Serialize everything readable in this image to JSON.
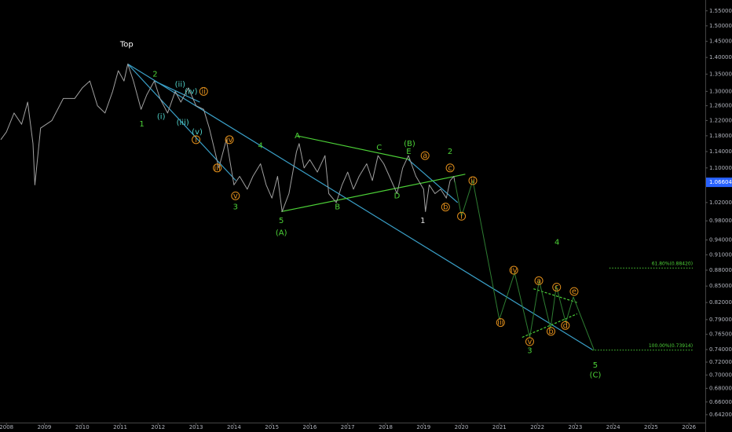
{
  "chart_data": {
    "type": "line",
    "log_scale": true,
    "xlim": [
      2007.83,
      2026.43
    ],
    "ylim": [
      0.631,
      1.587
    ],
    "xticks": [
      2008,
      2009,
      2010,
      2011,
      2012,
      2013,
      2014,
      2015,
      2016,
      2017,
      2018,
      2019,
      2020,
      2021,
      2022,
      2023,
      2024,
      2025,
      2026
    ],
    "yticks": [
      {
        "value": 1.55,
        "label": "1.55000"
      },
      {
        "value": 1.5,
        "label": "1.50000"
      },
      {
        "value": 1.45,
        "label": "1.45000"
      },
      {
        "value": 1.4,
        "label": "1.40000"
      },
      {
        "value": 1.35,
        "label": "1.35000"
      },
      {
        "value": 1.3,
        "label": "1.30000"
      },
      {
        "value": 1.26,
        "label": "1.26000"
      },
      {
        "value": 1.22,
        "label": "1.22000"
      },
      {
        "value": 1.18,
        "label": "1.18000"
      },
      {
        "value": 1.14,
        "label": "1.14000"
      },
      {
        "value": 1.1,
        "label": "1.10000"
      },
      {
        "value": 1.02,
        "label": "1.02000"
      },
      {
        "value": 0.98,
        "label": "0.98000"
      },
      {
        "value": 0.94,
        "label": "0.94000"
      },
      {
        "value": 0.91,
        "label": "0.91000"
      },
      {
        "value": 0.88,
        "label": "0.88000"
      },
      {
        "value": 0.85,
        "label": "0.85000"
      },
      {
        "value": 0.82,
        "label": "0.82000"
      },
      {
        "value": 0.79,
        "label": "0.79000"
      },
      {
        "value": 0.765,
        "label": "0.76500"
      },
      {
        "value": 0.74,
        "label": "0.74000"
      },
      {
        "value": 0.72,
        "label": "0.72000"
      },
      {
        "value": 0.7,
        "label": "0.70000"
      },
      {
        "value": 0.68,
        "label": "0.68000"
      },
      {
        "value": 0.66,
        "label": "0.66000"
      },
      {
        "value": 0.642,
        "label": "0.64200"
      }
    ],
    "last_price": 1.06604,
    "last_price_color": "#2962ff",
    "series": [
      {
        "color": "#a0a0a0",
        "x": [
          2007.85,
          2008.0,
          2008.2,
          2008.4,
          2008.56,
          2008.7,
          2008.75,
          2008.9,
          2009.2,
          2009.5,
          2009.8,
          2010.0,
          2010.2,
          2010.4,
          2010.6,
          2010.8,
          2010.95,
          2011.1,
          2011.2,
          2011.35,
          2011.55,
          2011.7,
          2011.9,
          2012.05,
          2012.25,
          2012.45,
          2012.6,
          2012.8,
          2013.0,
          2013.2,
          2013.35,
          2013.5,
          2013.6,
          2013.8,
          2014.0,
          2014.15,
          2014.35,
          2014.5,
          2014.7,
          2014.85,
          2015.0,
          2015.15,
          2015.27,
          2015.45,
          2015.65,
          2015.72,
          2015.85,
          2016.0,
          2016.2,
          2016.4,
          2016.5,
          2016.7,
          2016.85,
          2017.0,
          2017.15,
          2017.3,
          2017.5,
          2017.65,
          2017.8,
          2017.95,
          2018.1,
          2018.3,
          2018.45,
          2018.6,
          2018.8,
          2019.0,
          2019.05,
          2019.15,
          2019.3,
          2019.45,
          2019.6,
          2019.7,
          2019.8,
          2019.82
        ],
        "values": [
          1.17,
          1.19,
          1.24,
          1.21,
          1.27,
          1.16,
          1.06,
          1.2,
          1.22,
          1.28,
          1.28,
          1.31,
          1.33,
          1.26,
          1.24,
          1.3,
          1.36,
          1.33,
          1.38,
          1.33,
          1.25,
          1.29,
          1.33,
          1.28,
          1.24,
          1.3,
          1.27,
          1.31,
          1.26,
          1.25,
          1.2,
          1.14,
          1.1,
          1.17,
          1.06,
          1.08,
          1.05,
          1.08,
          1.11,
          1.06,
          1.03,
          1.08,
          1.0,
          1.04,
          1.14,
          1.16,
          1.1,
          1.12,
          1.09,
          1.13,
          1.04,
          1.02,
          1.06,
          1.09,
          1.05,
          1.08,
          1.11,
          1.07,
          1.13,
          1.11,
          1.08,
          1.04,
          1.1,
          1.13,
          1.08,
          1.05,
          1.0,
          1.06,
          1.04,
          1.05,
          1.03,
          1.07,
          1.08,
          1.066
        ]
      },
      {
        "color": "#2e7d32",
        "x": [
          2019.82,
          2020.0,
          2020.3,
          2021.0,
          2021.4,
          2021.8,
          2022.05,
          2022.35,
          2022.5,
          2022.75,
          2022.95,
          2023.5
        ],
        "values": [
          1.07,
          0.99,
          1.07,
          0.79,
          0.875,
          0.76,
          0.86,
          0.775,
          0.85,
          0.785,
          0.83,
          0.739
        ]
      }
    ],
    "trendlines": [
      {
        "color": "#3aa0c8",
        "dashed": false,
        "x": [
          2011.2,
          2023.45
        ],
        "values": [
          1.38,
          0.74
        ]
      },
      {
        "color": "#3aa0c8",
        "dashed": false,
        "x": [
          2011.2,
          2014.05
        ],
        "values": [
          1.38,
          1.07
        ]
      },
      {
        "color": "#3aa0c8",
        "dashed": false,
        "x": [
          2011.9,
          2013.1
        ],
        "values": [
          1.33,
          1.27
        ]
      },
      {
        "color": "#3aa0c8",
        "dashed": false,
        "x": [
          2018.6,
          2019.9
        ],
        "values": [
          1.12,
          1.02
        ]
      },
      {
        "color": "#4cd137",
        "dashed": false,
        "x": [
          2015.67,
          2018.65
        ],
        "values": [
          1.18,
          1.12
        ]
      },
      {
        "color": "#4cd137",
        "dashed": false,
        "x": [
          2015.25,
          2020.1
        ],
        "values": [
          1.0,
          1.085
        ]
      },
      {
        "color": "#4cd137",
        "dashed": true,
        "x": [
          2021.9,
          2023.05
        ],
        "values": [
          0.845,
          0.82
        ]
      },
      {
        "color": "#4cd137",
        "dashed": true,
        "x": [
          2021.6,
          2023.05
        ],
        "values": [
          0.76,
          0.8
        ]
      }
    ],
    "levels": [
      {
        "label": "61.80%(0.88420)",
        "value": 0.8842,
        "x": [
          2023.9,
          2026.1
        ],
        "color": "#4cd137"
      },
      {
        "label": "100.00%(0.73914)",
        "value": 0.73914,
        "x": [
          2023.45,
          2026.1
        ],
        "color": "#4cd137"
      }
    ],
    "annotations": [
      {
        "text": "Top",
        "x": 2011.17,
        "y": 1.44,
        "color": "#ffffff",
        "circled": false
      },
      {
        "text": "2",
        "x": 2011.92,
        "y": 1.35,
        "color": "#4cd137",
        "circled": false
      },
      {
        "text": "1",
        "x": 2011.57,
        "y": 1.21,
        "color": "#4cd137",
        "circled": false
      },
      {
        "text": "(ii)",
        "x": 2012.58,
        "y": 1.32,
        "color": "#4ecdc4",
        "circled": false
      },
      {
        "text": "(iv)",
        "x": 2012.87,
        "y": 1.3,
        "color": "#4ecdc4",
        "circled": false
      },
      {
        "text": "ii",
        "x": 2013.2,
        "y": 1.3,
        "color": "#e08e1b",
        "circled": true
      },
      {
        "text": "(i)",
        "x": 2012.08,
        "y": 1.23,
        "color": "#4ecdc4",
        "circled": false
      },
      {
        "text": "(iii)",
        "x": 2012.65,
        "y": 1.215,
        "color": "#4ecdc4",
        "circled": false
      },
      {
        "text": "(v)",
        "x": 2013.03,
        "y": 1.19,
        "color": "#4ecdc4",
        "circled": false
      },
      {
        "text": "i",
        "x": 2013.0,
        "y": 1.17,
        "color": "#e08e1b",
        "circled": true
      },
      {
        "text": "iv",
        "x": 2013.88,
        "y": 1.17,
        "color": "#e08e1b",
        "circled": true
      },
      {
        "text": "iii",
        "x": 2013.56,
        "y": 1.1,
        "color": "#e08e1b",
        "circled": true
      },
      {
        "text": "4",
        "x": 2014.7,
        "y": 1.155,
        "color": "#4cd137",
        "circled": false
      },
      {
        "text": "v",
        "x": 2014.04,
        "y": 1.035,
        "color": "#e08e1b",
        "circled": true
      },
      {
        "text": "3",
        "x": 2014.04,
        "y": 1.01,
        "color": "#4cd137",
        "circled": false
      },
      {
        "text": "A",
        "x": 2015.67,
        "y": 1.18,
        "color": "#4cd137",
        "circled": false
      },
      {
        "text": "5",
        "x": 2015.25,
        "y": 0.98,
        "color": "#4cd137",
        "circled": false
      },
      {
        "text": "(A)",
        "x": 2015.25,
        "y": 0.955,
        "color": "#4cd137",
        "circled": false
      },
      {
        "text": "B",
        "x": 2016.73,
        "y": 1.01,
        "color": "#4cd137",
        "circled": false
      },
      {
        "text": "C",
        "x": 2017.83,
        "y": 1.15,
        "color": "#4cd137",
        "circled": false
      },
      {
        "text": "(B)",
        "x": 2018.63,
        "y": 1.16,
        "color": "#4cd137",
        "circled": false
      },
      {
        "text": "E",
        "x": 2018.61,
        "y": 1.14,
        "color": "#4cd137",
        "circled": false
      },
      {
        "text": "D",
        "x": 2018.3,
        "y": 1.035,
        "color": "#4cd137",
        "circled": false
      },
      {
        "text": "2",
        "x": 2019.7,
        "y": 1.14,
        "color": "#4cd137",
        "circled": false
      },
      {
        "text": "a",
        "x": 2019.04,
        "y": 1.13,
        "color": "#e08e1b",
        "circled": true
      },
      {
        "text": "c",
        "x": 2019.7,
        "y": 1.1,
        "color": "#e08e1b",
        "circled": true
      },
      {
        "text": "b",
        "x": 2019.58,
        "y": 1.01,
        "color": "#e08e1b",
        "circled": true
      },
      {
        "text": "1",
        "x": 2018.98,
        "y": 0.98,
        "color": "#e0e0e0",
        "circled": false
      },
      {
        "text": "ii",
        "x": 2020.3,
        "y": 1.07,
        "color": "#e08e1b",
        "circled": true
      },
      {
        "text": "i",
        "x": 2020.0,
        "y": 0.99,
        "color": "#e08e1b",
        "circled": true
      },
      {
        "text": "4",
        "x": 2022.52,
        "y": 0.935,
        "color": "#4cd137",
        "circled": false
      },
      {
        "text": "iv",
        "x": 2021.38,
        "y": 0.88,
        "color": "#e08e1b",
        "circled": true
      },
      {
        "text": "iii",
        "x": 2021.03,
        "y": 0.785,
        "color": "#e08e1b",
        "circled": true
      },
      {
        "text": "a",
        "x": 2022.04,
        "y": 0.86,
        "color": "#e08e1b",
        "circled": true
      },
      {
        "text": "c",
        "x": 2022.51,
        "y": 0.848,
        "color": "#e08e1b",
        "circled": true
      },
      {
        "text": "e",
        "x": 2022.97,
        "y": 0.84,
        "color": "#e08e1b",
        "circled": true
      },
      {
        "text": "d",
        "x": 2022.74,
        "y": 0.78,
        "color": "#e08e1b",
        "circled": true
      },
      {
        "text": "b",
        "x": 2022.36,
        "y": 0.77,
        "color": "#e08e1b",
        "circled": true
      },
      {
        "text": "v",
        "x": 2021.8,
        "y": 0.753,
        "color": "#e08e1b",
        "circled": true
      },
      {
        "text": "3",
        "x": 2021.8,
        "y": 0.738,
        "color": "#4cd137",
        "circled": false
      },
      {
        "text": "5",
        "x": 2023.53,
        "y": 0.715,
        "color": "#4cd137",
        "circled": false
      },
      {
        "text": "(C)",
        "x": 2023.53,
        "y": 0.7,
        "color": "#4cd137",
        "circled": false
      }
    ]
  }
}
